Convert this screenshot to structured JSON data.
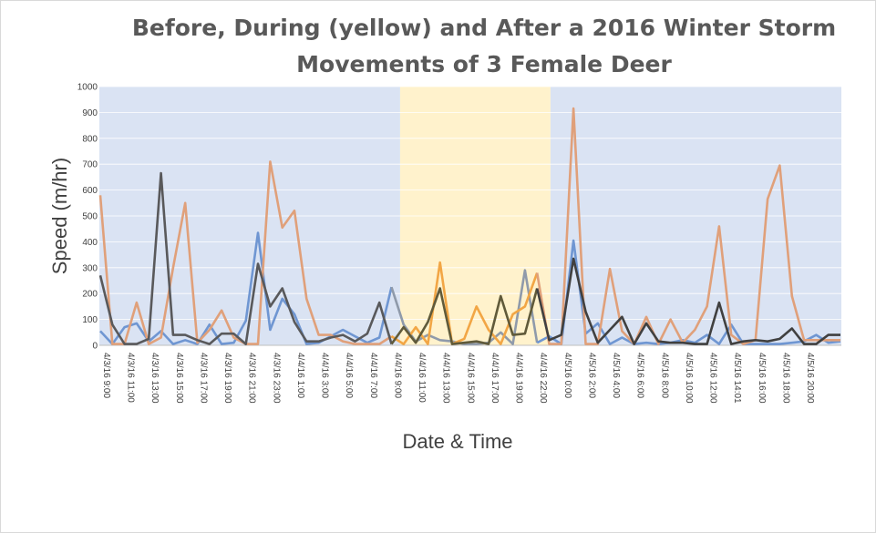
{
  "chart_data": {
    "type": "line",
    "title_line1": "Before, During (yellow) and After a 2016 Winter Storm",
    "title_line2": "Movements of 3 Female Deer",
    "xlabel": "Date & Time",
    "ylabel": "Speed (m/hr)",
    "ylim": [
      0,
      1000
    ],
    "yticks": [
      0,
      100,
      200,
      300,
      400,
      500,
      600,
      700,
      800,
      900,
      1000
    ],
    "grid": true,
    "legend": "none",
    "x_tick_labels": [
      "4/3/16 9:00",
      "4/3/16 11:00",
      "4/3/16 13:00",
      "4/3/16 15:00",
      "4/3/16 17:00",
      "4/3/16 19:00",
      "4/3/16 21:00",
      "4/3/16 23:00",
      "4/4/16 1:00",
      "4/4/16 3:00",
      "4/4/16 5:00",
      "4/4/16 7:00",
      "4/4/16 9:00",
      "4/4/16 11:00",
      "4/4/16 13:00",
      "4/4/16 15:00",
      "4/4/16 17:00",
      "4/4/16 19:00",
      "4/4/16 22:00",
      "4/5/16 0:00",
      "4/5/16 2:00",
      "4/5/16 4:00",
      "4/5/16 6:00",
      "4/5/16 8:00",
      "4/5/16 10:00",
      "4/5/16 12:00",
      "4/5/16 14:01",
      "4/5/16 16:00",
      "4/5/16 18:00",
      "4/5/16 20:00"
    ],
    "regions": [
      {
        "name": "before",
        "from": 0,
        "to": 24.4,
        "color": "#dae3f3"
      },
      {
        "name": "during",
        "from": 24.4,
        "to": 36.6,
        "color": "#fff2cc"
      },
      {
        "name": "after",
        "from": 36.6,
        "to": 60.2,
        "color": "#dae3f3"
      }
    ],
    "series": [
      {
        "color_before": "#6f96d2",
        "color_during": "#8f9aaa",
        "color_after": "#6f96d2",
        "values": [
          55,
          5,
          70,
          85,
          15,
          55,
          5,
          20,
          5,
          80,
          5,
          10,
          95,
          435,
          60,
          180,
          120,
          5,
          10,
          35,
          60,
          35,
          10,
          30,
          225,
          80,
          15,
          40,
          20,
          15,
          5,
          5,
          10,
          50,
          5,
          290,
          10,
          35,
          5,
          405,
          45,
          85,
          5,
          30,
          5,
          10,
          5,
          10,
          20,
          10,
          40,
          5,
          80,
          5,
          5,
          5,
          5,
          10,
          15,
          40,
          10,
          15
        ]
      },
      {
        "color_before": "#e0a07a",
        "color_during": "#f2a645",
        "color_after": "#e0a07a",
        "values": [
          580,
          5,
          5,
          165,
          5,
          30,
          300,
          550,
          10,
          60,
          135,
          30,
          5,
          5,
          710,
          455,
          520,
          180,
          40,
          40,
          15,
          5,
          5,
          5,
          35,
          5,
          70,
          5,
          320,
          5,
          25,
          150,
          60,
          5,
          120,
          150,
          280,
          5,
          5,
          915,
          5,
          5,
          295,
          55,
          5,
          110,
          5,
          100,
          10,
          60,
          150,
          460,
          40,
          5,
          20,
          565,
          695,
          190,
          20,
          20,
          20,
          20
        ]
      },
      {
        "color_before": "#59595b",
        "color_during": "#605a3a",
        "color_after": "#404040",
        "values": [
          270,
          80,
          5,
          5,
          25,
          665,
          40,
          40,
          20,
          5,
          45,
          45,
          5,
          315,
          150,
          220,
          90,
          15,
          15,
          30,
          40,
          15,
          45,
          165,
          5,
          70,
          10,
          90,
          220,
          5,
          10,
          15,
          5,
          190,
          40,
          45,
          220,
          20,
          40,
          335,
          130,
          10,
          60,
          110,
          5,
          85,
          15,
          10,
          10,
          5,
          5,
          165,
          5,
          15,
          20,
          15,
          25,
          65,
          5,
          5,
          40,
          40
        ]
      }
    ]
  }
}
